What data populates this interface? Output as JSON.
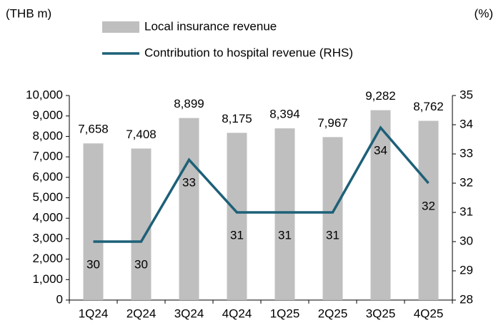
{
  "chart_data": {
    "type": "bar_line",
    "y_label": "(THB m)",
    "y2_label": "(%)",
    "categories": [
      "1Q24",
      "2Q24",
      "3Q24",
      "4Q24",
      "1Q25",
      "2Q25",
      "3Q25",
      "4Q25"
    ],
    "series": [
      {
        "name": "Local insurance revenue",
        "type": "bar",
        "color": "#bfbfbf",
        "values": [
          7658,
          7408,
          8899,
          8175,
          8394,
          7967,
          9282,
          8762
        ],
        "value_labels": [
          "7,658",
          "7,408",
          "8,899",
          "8,175",
          "8,394",
          "7,967",
          "9,282",
          "8,762"
        ]
      },
      {
        "name": "Contribution to hospital revenue (RHS)",
        "type": "line",
        "axis": "y2",
        "color": "#1d6078",
        "values": [
          30,
          30,
          32.8,
          31,
          31,
          31,
          33.9,
          32
        ],
        "value_labels": [
          "30",
          "30",
          "33",
          "31",
          "31",
          "31",
          "34",
          "32"
        ]
      }
    ],
    "ylim": [
      0,
      10000
    ],
    "yticks": [
      0,
      {
        "value": 1000,
        "label": "1,000"
      },
      {
        "value": 2000,
        "label": "2,000"
      },
      {
        "value": 3000,
        "label": "3,000"
      },
      {
        "value": 4000,
        "label": "4,000"
      },
      {
        "value": 5000,
        "label": "5,000"
      },
      {
        "value": 6000,
        "label": "6,000"
      },
      {
        "value": 7000,
        "label": "7,000"
      },
      {
        "value": 8000,
        "label": "8,000"
      },
      {
        "value": 9000,
        "label": "9,000"
      },
      {
        "value": 10000,
        "label": "10,000"
      }
    ],
    "y2lim": [
      28,
      35
    ],
    "y2ticks": [
      28,
      29,
      30,
      31,
      32,
      33,
      34,
      35
    ],
    "grid": false
  }
}
